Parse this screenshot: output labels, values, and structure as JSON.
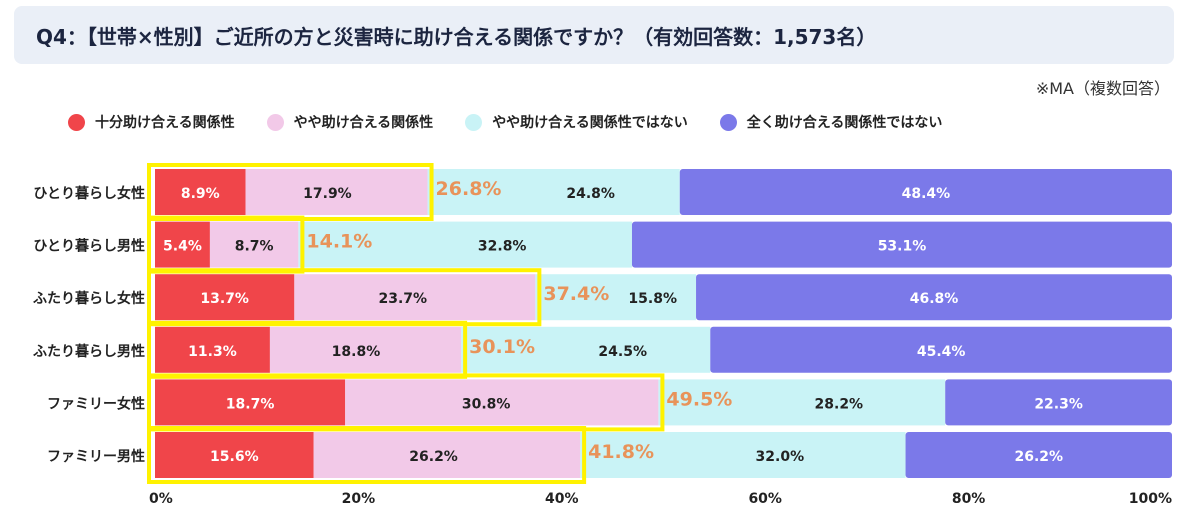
{
  "header": {
    "title": "Q4：【世帯×性別】ご近所の方と災害時に助け合える関係ですか？（有効回答数：1,573名）",
    "note": "※MA（複数回答）"
  },
  "colors": {
    "very": "#f0454a",
    "somewhat": "#f2c9e8",
    "not_really": "#c9f3f6",
    "not_at_all": "#7b79e9",
    "highlight_box": "#fff200",
    "total_label": "#e8935a",
    "title_bg": "#eaeff7"
  },
  "chart_data": {
    "type": "bar",
    "orientation": "horizontal",
    "stacked": true,
    "categories": [
      "ひとり暮らし女性",
      "ひとり暮らし男性",
      "ふたり暮らし女性",
      "ふたり暮らし男性",
      "ファミリー女性",
      "ファミリー男性"
    ],
    "series": [
      {
        "name": "十分助け合える関係性",
        "values": [
          8.9,
          5.4,
          13.7,
          11.3,
          18.7,
          15.6
        ],
        "labels": [
          "8.9%",
          "5.4%",
          "13.7%",
          "11.3%",
          "18.7%",
          "15.6%"
        ]
      },
      {
        "name": "やや助け合える関係性",
        "values": [
          17.9,
          8.7,
          23.7,
          18.8,
          30.8,
          26.2
        ],
        "labels": [
          "17.9%",
          "8.7%",
          "23.7%",
          "18.8%",
          "30.8%",
          "26.2%"
        ]
      },
      {
        "name": "やや助け合える関係性ではない",
        "values": [
          24.8,
          32.8,
          15.8,
          24.5,
          28.2,
          32.0
        ],
        "labels": [
          "24.8%",
          "32.8%",
          "15.8%",
          "24.5%",
          "28.2%",
          "32.0%"
        ]
      },
      {
        "name": "全く助け合える関係性ではない",
        "values": [
          48.4,
          53.1,
          46.8,
          45.4,
          22.3,
          26.2
        ],
        "labels": [
          "48.4%",
          "53.1%",
          "46.8%",
          "45.4%",
          "22.3%",
          "26.2%"
        ]
      }
    ],
    "highlight_totals": [
      26.8,
      14.1,
      37.4,
      30.1,
      49.5,
      41.8
    ],
    "highlight_labels": [
      "26.8%",
      "14.1%",
      "37.4%",
      "30.1%",
      "49.5%",
      "41.8%"
    ],
    "xticks": [
      0,
      20,
      40,
      60,
      80,
      100
    ],
    "xtick_labels": [
      "0%",
      "20%",
      "40%",
      "60%",
      "80%",
      "100%"
    ],
    "xlim": [
      0,
      100
    ],
    "grid": false,
    "legend_position": "top"
  }
}
